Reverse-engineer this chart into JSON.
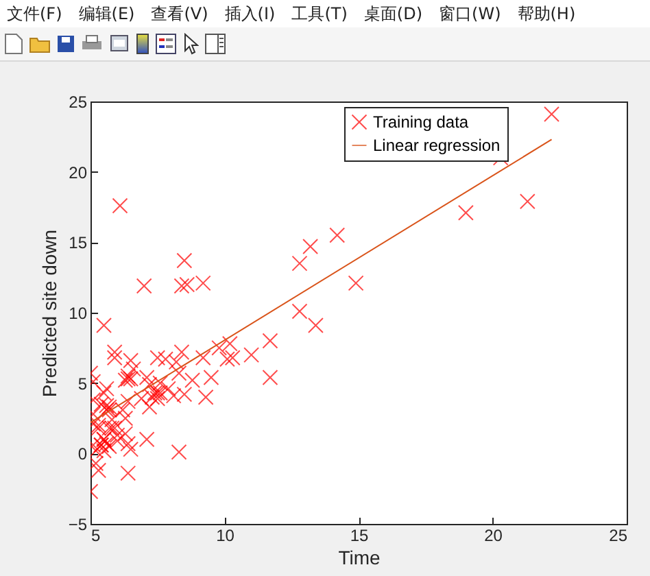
{
  "chart_data": {
    "type": "scatter",
    "xlabel": "Time",
    "ylabel": "Predicted site down",
    "xlim": [
      5,
      25
    ],
    "ylim": [
      -5,
      25
    ],
    "xticks": [
      5,
      10,
      15,
      20,
      25
    ],
    "yticks": [
      -5,
      0,
      5,
      10,
      15,
      20,
      25
    ],
    "grid": false,
    "legend": "top right",
    "annotations": [
      "文件(F)",
      "编辑(E)",
      "查看(V)",
      "插入(I)",
      "工具(T)",
      "桌面(D)",
      "窗口(W)",
      "帮助(H)"
    ],
    "series": [
      {
        "name": "Training data",
        "marker": "cross",
        "color": "#ff0000",
        "x": [
          6.1,
          5.5,
          8.5,
          7.0,
          5.9,
          8.4,
          7.5,
          8.6,
          6.5,
          5.1,
          5.7,
          14.2,
          5.7,
          8.4,
          5.6,
          5.4,
          6.4,
          5.1,
          6.4,
          7.1,
          6.2,
          5.5,
          6.3,
          5.6,
          12.8,
          11.0,
          13.2,
          22.2,
          5.3,
          6.6,
          9.2,
          5.9,
          8.2,
          7.9,
          8.1,
          5.6,
          12.8,
          6.4,
          5.4,
          6.9,
          11.7,
          5.8,
          7.8,
          7.1,
          5.1,
          5.8,
          11.7,
          5.5,
          7.5,
          5.3,
          7.4,
          7.6,
          6.3,
          6.4,
          6.3,
          5.6,
          9.3,
          9.5,
          8.8,
          5.2,
          21.3,
          14.9,
          19.0,
          7.2,
          8.3,
          10.2,
          5.5,
          20.3,
          10.1,
          7.3,
          6.0,
          7.2,
          5.0,
          6.5,
          7.5,
          5.0,
          10.3,
          5.1,
          5.7,
          5.2,
          6.4,
          9.8,
          6.5,
          8.5,
          9.2,
          6.0,
          5.5,
          5.1,
          5.7,
          7.6,
          5.9,
          5.3,
          8.3,
          13.4,
          5.4
        ],
        "values": [
          17.6,
          9.1,
          13.7,
          11.9,
          6.8,
          11.9,
          4.3,
          12.0,
          6.6,
          3.8,
          3.3,
          15.5,
          3.1,
          7.2,
          0.7,
          3.5,
          5.3,
          0.6,
          3.7,
          5.4,
          3.1,
          4.3,
          5.2,
          3.1,
          13.5,
          7.0,
          14.7,
          24.1,
          -1.2,
          6.0,
          12.1,
          1.8,
          6.5,
          4.6,
          4.1,
          3.4,
          10.1,
          5.5,
          0.6,
          3.9,
          5.4,
          2.4,
          6.7,
          1.0,
          5.1,
          1.8,
          8.0,
          1.0,
          6.8,
          1.8,
          4.3,
          5.0,
          1.4,
          -1.4,
          2.5,
          4.6,
          4.0,
          5.4,
          5.2,
          -0.7,
          17.9,
          12.1,
          17.1,
          4.9,
          5.7,
          7.8,
          1.0,
          21.0,
          6.7,
          4.0,
          1.3,
          3.3,
          -2.7,
          0.3,
          3.9,
          5.7,
          6.8,
          2.1,
          0.5,
          0.2,
          0.7,
          7.5,
          5.3,
          4.2,
          6.8,
          0.9,
          0.2,
          2.8,
          1.8,
          4.3,
          7.2,
          2.0,
          0.1,
          9.1,
          0.6
        ]
      },
      {
        "name": "Linear regression",
        "type": "line",
        "color": "#d95319",
        "x": [
          5.0,
          22.2
        ],
        "values": [
          2.2,
          22.3
        ]
      }
    ]
  }
}
